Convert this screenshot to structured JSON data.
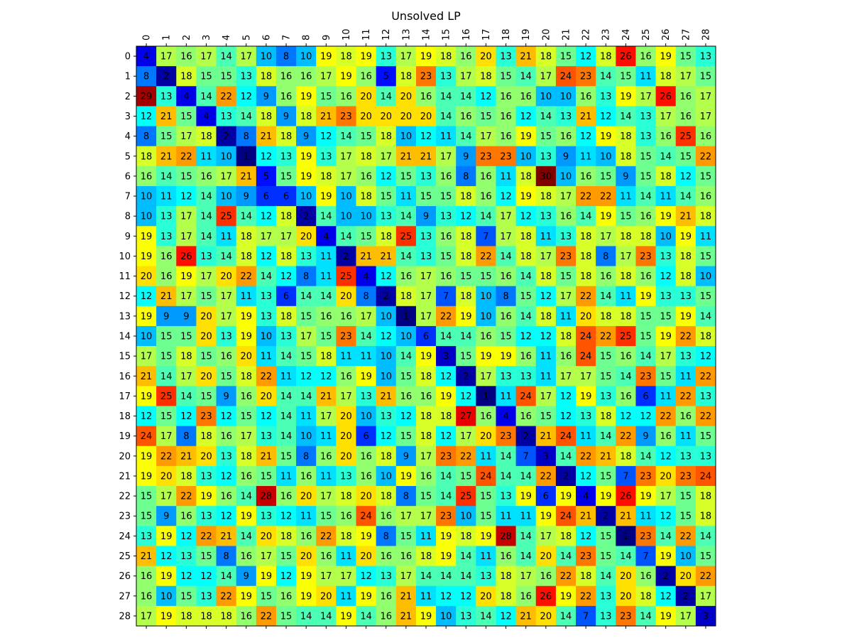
{
  "chart_data": {
    "type": "heatmap",
    "title": "Unsolved LP",
    "xlabel": "",
    "ylabel": "",
    "x_ticks": [
      "0",
      "1",
      "2",
      "3",
      "4",
      "5",
      "6",
      "7",
      "8",
      "9",
      "10",
      "11",
      "12",
      "13",
      "14",
      "15",
      "16",
      "17",
      "18",
      "19",
      "20",
      "21",
      "22",
      "23",
      "24",
      "25",
      "26",
      "27",
      "28"
    ],
    "y_ticks": [
      "0",
      "1",
      "2",
      "3",
      "4",
      "5",
      "6",
      "7",
      "8",
      "9",
      "10",
      "11",
      "12",
      "13",
      "14",
      "15",
      "16",
      "17",
      "18",
      "19",
      "20",
      "21",
      "22",
      "23",
      "24",
      "25",
      "26",
      "27",
      "28"
    ],
    "x_tick_position": "top",
    "colormap": "jet",
    "value_range": [
      1,
      30
    ],
    "cell_labels": true,
    "grid": false,
    "legend": "none",
    "values": [
      [
        4,
        17,
        16,
        17,
        14,
        17,
        10,
        8,
        10,
        19,
        18,
        19,
        13,
        17,
        19,
        18,
        16,
        20,
        13,
        21,
        18,
        15,
        12,
        18,
        26,
        16,
        19,
        15,
        13
      ],
      [
        8,
        2,
        18,
        15,
        15,
        13,
        18,
        16,
        16,
        17,
        19,
        16,
        5,
        18,
        23,
        13,
        17,
        18,
        15,
        14,
        17,
        24,
        23,
        14,
        15,
        11,
        18,
        17,
        15
      ],
      [
        29,
        13,
        4,
        14,
        22,
        12,
        9,
        16,
        19,
        15,
        16,
        20,
        14,
        20,
        16,
        14,
        14,
        12,
        16,
        16,
        10,
        10,
        16,
        13,
        19,
        17,
        26,
        16,
        17
      ],
      [
        12,
        21,
        15,
        4,
        13,
        14,
        18,
        9,
        18,
        21,
        23,
        20,
        20,
        20,
        20,
        14,
        16,
        15,
        16,
        12,
        14,
        13,
        21,
        12,
        14,
        13,
        17,
        16,
        17
      ],
      [
        8,
        15,
        17,
        18,
        2,
        8,
        21,
        18,
        9,
        12,
        14,
        15,
        18,
        10,
        12,
        11,
        14,
        17,
        16,
        19,
        15,
        16,
        12,
        19,
        18,
        13,
        16,
        25,
        16
      ],
      [
        18,
        21,
        22,
        11,
        10,
        1,
        12,
        13,
        19,
        13,
        17,
        18,
        17,
        21,
        21,
        17,
        9,
        23,
        23,
        10,
        13,
        9,
        11,
        10,
        18,
        15,
        14,
        15,
        22
      ],
      [
        16,
        14,
        15,
        16,
        17,
        21,
        5,
        15,
        19,
        18,
        17,
        16,
        12,
        15,
        13,
        16,
        8,
        16,
        11,
        18,
        30,
        10,
        16,
        15,
        9,
        15,
        18,
        12,
        15
      ],
      [
        10,
        11,
        12,
        14,
        10,
        9,
        6,
        6,
        10,
        19,
        10,
        18,
        15,
        11,
        15,
        15,
        18,
        16,
        12,
        19,
        18,
        17,
        22,
        22,
        11,
        14,
        11,
        14,
        16
      ],
      [
        10,
        13,
        17,
        14,
        25,
        14,
        12,
        18,
        2,
        14,
        10,
        10,
        13,
        14,
        9,
        13,
        12,
        14,
        17,
        12,
        13,
        16,
        14,
        19,
        15,
        16,
        19,
        21,
        18
      ],
      [
        19,
        13,
        17,
        14,
        11,
        18,
        17,
        17,
        20,
        4,
        14,
        15,
        18,
        25,
        13,
        16,
        18,
        7,
        17,
        18,
        11,
        13,
        18,
        17,
        18,
        18,
        10,
        19,
        11
      ],
      [
        19,
        16,
        26,
        13,
        14,
        18,
        12,
        18,
        13,
        11,
        2,
        21,
        21,
        14,
        13,
        15,
        18,
        22,
        14,
        18,
        17,
        23,
        18,
        8,
        17,
        23,
        13,
        18,
        15
      ],
      [
        20,
        16,
        19,
        17,
        20,
        22,
        14,
        12,
        8,
        11,
        25,
        4,
        12,
        16,
        17,
        16,
        15,
        15,
        16,
        14,
        18,
        15,
        18,
        16,
        18,
        16,
        12,
        18,
        10
      ],
      [
        12,
        21,
        17,
        15,
        17,
        11,
        13,
        6,
        14,
        14,
        20,
        8,
        2,
        18,
        17,
        7,
        18,
        10,
        8,
        15,
        12,
        17,
        22,
        14,
        11,
        19,
        13,
        13,
        15
      ],
      [
        19,
        9,
        9,
        20,
        17,
        19,
        13,
        18,
        15,
        16,
        16,
        17,
        10,
        1,
        17,
        22,
        19,
        10,
        16,
        14,
        18,
        11,
        20,
        18,
        18,
        15,
        15,
        19,
        14
      ],
      [
        10,
        15,
        15,
        20,
        13,
        19,
        10,
        13,
        17,
        15,
        23,
        14,
        12,
        10,
        6,
        14,
        14,
        16,
        15,
        12,
        12,
        18,
        24,
        22,
        25,
        15,
        19,
        22,
        18
      ],
      [
        17,
        15,
        18,
        15,
        16,
        20,
        11,
        14,
        15,
        18,
        11,
        11,
        10,
        14,
        19,
        3,
        15,
        19,
        19,
        16,
        11,
        16,
        24,
        15,
        16,
        14,
        17,
        13,
        12
      ],
      [
        21,
        14,
        17,
        20,
        15,
        18,
        22,
        11,
        12,
        12,
        16,
        19,
        10,
        15,
        18,
        12,
        2,
        17,
        13,
        13,
        11,
        17,
        17,
        15,
        14,
        23,
        15,
        11,
        22
      ],
      [
        19,
        25,
        14,
        15,
        9,
        16,
        20,
        14,
        14,
        21,
        17,
        13,
        21,
        16,
        16,
        19,
        12,
        1,
        11,
        24,
        17,
        12,
        19,
        13,
        16,
        6,
        11,
        22,
        13
      ],
      [
        12,
        15,
        12,
        23,
        12,
        15,
        12,
        14,
        11,
        17,
        20,
        10,
        13,
        12,
        18,
        18,
        27,
        16,
        4,
        16,
        15,
        12,
        13,
        18,
        12,
        12,
        22,
        16,
        22
      ],
      [
        24,
        17,
        8,
        18,
        16,
        17,
        13,
        14,
        10,
        11,
        20,
        6,
        12,
        15,
        18,
        12,
        17,
        20,
        23,
        2,
        21,
        24,
        11,
        14,
        22,
        9,
        16,
        11,
        15
      ],
      [
        19,
        22,
        21,
        20,
        13,
        18,
        21,
        15,
        8,
        16,
        20,
        16,
        18,
        9,
        17,
        23,
        22,
        11,
        14,
        7,
        3,
        14,
        22,
        21,
        18,
        14,
        12,
        13,
        13
      ],
      [
        19,
        20,
        18,
        13,
        12,
        16,
        15,
        11,
        16,
        11,
        13,
        16,
        10,
        19,
        16,
        14,
        15,
        24,
        14,
        14,
        22,
        2,
        12,
        15,
        7,
        23,
        20,
        23,
        24
      ],
      [
        15,
        17,
        22,
        19,
        16,
        14,
        28,
        16,
        20,
        17,
        18,
        20,
        18,
        8,
        15,
        14,
        25,
        15,
        13,
        19,
        6,
        19,
        4,
        19,
        26,
        19,
        17,
        15,
        18
      ],
      [
        15,
        9,
        16,
        13,
        12,
        19,
        13,
        12,
        11,
        15,
        16,
        24,
        16,
        17,
        17,
        23,
        10,
        15,
        11,
        11,
        19,
        24,
        21,
        2,
        21,
        11,
        12,
        15,
        18
      ],
      [
        13,
        19,
        12,
        22,
        21,
        14,
        20,
        18,
        16,
        22,
        18,
        19,
        8,
        15,
        11,
        19,
        18,
        19,
        28,
        14,
        17,
        18,
        12,
        15,
        1,
        23,
        14,
        22,
        14
      ],
      [
        21,
        12,
        13,
        15,
        8,
        16,
        17,
        15,
        20,
        16,
        11,
        20,
        16,
        16,
        18,
        19,
        14,
        11,
        16,
        14,
        20,
        14,
        23,
        15,
        14,
        7,
        19,
        10,
        15
      ],
      [
        16,
        19,
        12,
        12,
        14,
        9,
        19,
        12,
        19,
        17,
        17,
        12,
        13,
        17,
        14,
        14,
        14,
        13,
        18,
        17,
        16,
        22,
        18,
        14,
        20,
        16,
        2,
        20,
        22
      ],
      [
        16,
        10,
        15,
        13,
        22,
        19,
        15,
        16,
        19,
        20,
        11,
        19,
        16,
        21,
        11,
        12,
        12,
        20,
        18,
        16,
        26,
        19,
        22,
        13,
        20,
        18,
        12,
        2,
        17
      ],
      [
        17,
        19,
        18,
        18,
        18,
        16,
        22,
        15,
        14,
        14,
        19,
        14,
        16,
        21,
        19,
        10,
        13,
        14,
        12,
        21,
        20,
        14,
        7,
        13,
        23,
        14,
        19,
        17,
        3
      ]
    ]
  }
}
